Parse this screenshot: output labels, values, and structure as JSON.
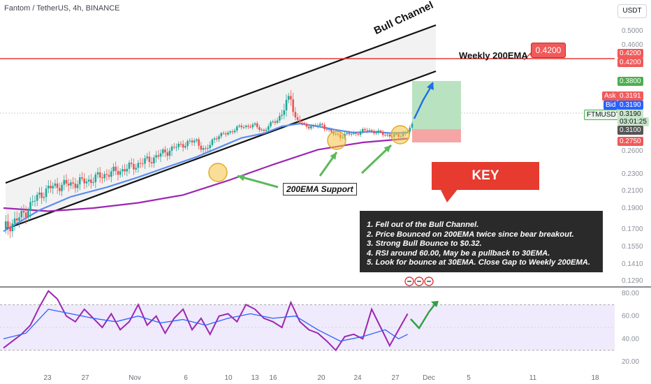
{
  "header": {
    "title": "Fantom / TetherUS, 4h, BINANCE",
    "currency_button": "USDT"
  },
  "annotations": {
    "bull_channel": "Bull Channel",
    "weekly_200ema": "Weekly 200EMA",
    "weekly_200ema_value": "0.4200",
    "ema_support": "200EMA Support",
    "key_takeaways": "KEY TAKEAWAYS",
    "notes": [
      "1. Fell out of the Bull Channel.",
      "2. Price Bounced on 200EMA twice since bear breakout.",
      "3. Strong Bull Bounce to $0.32.",
      "4. RSI around 60.00, May be a pullback to 30EMA.",
      "5. Look for bounce at 30EMA. Close Gap to Weekly 200EMA."
    ]
  },
  "price_labels": {
    "weekly_ema_a": "0.4200",
    "weekly_ema_b": "0.4200",
    "target": "0.3800",
    "ask_tag": "Ask",
    "ask": "0.3191",
    "bid_tag": "Bid",
    "bid": "0.3190",
    "symbol": "FTMUSDT",
    "last": "0.3190",
    "countdown": "03:01:25",
    "entry": "0.3100",
    "stop": "0.2750"
  },
  "colors": {
    "candle_up": "#26a69a",
    "candle_down": "#ef5350",
    "ema30": "#5b8def",
    "ema200": "#9c27b0",
    "channel": "#111111",
    "weekly_ema": "#e53935",
    "rsi": "#9c27b0",
    "rsi_ma": "#2962ff",
    "target_zone": "#b9e3c0",
    "stop_zone": "#f6a5a5",
    "support_circle": "#f5c242",
    "arrow_green": "#5cb85c",
    "arrow_blue": "#1e6fe8"
  },
  "chart_data": [
    {
      "type": "candlestick",
      "title": "Fantom / TetherUS, 4h, BINANCE",
      "x_ticks": [
        "23",
        "27",
        "Nov",
        "6",
        "10",
        "13",
        "16",
        "20",
        "24",
        "27",
        "Dec",
        "5",
        "11",
        "18"
      ],
      "y_ticks": [
        0.129,
        0.141,
        0.155,
        0.17,
        0.19,
        0.21,
        0.23,
        0.26,
        0.28,
        0.31,
        0.34,
        0.38,
        0.42,
        0.46,
        0.5
      ],
      "y_tick_labels": [
        "0.1290",
        "0.1410",
        "0.1550",
        "0.1700",
        "0.1900",
        "0.2100",
        "0.2300",
        "0.2600",
        "0.2800",
        "0.3100",
        "0.3400",
        "0.3800",
        "0.4200",
        "0.4600",
        "0.5000"
      ],
      "price_path": [
        [
          0,
          0.17
        ],
        [
          8,
          0.182
        ],
        [
          16,
          0.205
        ],
        [
          22,
          0.215
        ],
        [
          30,
          0.218
        ],
        [
          38,
          0.222
        ],
        [
          46,
          0.23
        ],
        [
          54,
          0.236
        ],
        [
          62,
          0.245
        ],
        [
          68,
          0.252
        ],
        [
          74,
          0.262
        ],
        [
          80,
          0.272
        ],
        [
          86,
          0.278
        ],
        [
          90,
          0.258
        ],
        [
          94,
          0.285
        ],
        [
          100,
          0.3
        ],
        [
          106,
          0.318
        ],
        [
          112,
          0.32
        ],
        [
          116,
          0.305
        ],
        [
          120,
          0.33
        ],
        [
          124,
          0.345
        ],
        [
          128,
          0.365
        ],
        [
          130,
          0.34
        ],
        [
          134,
          0.32
        ],
        [
          138,
          0.318
        ],
        [
          142,
          0.322
        ],
        [
          146,
          0.3
        ],
        [
          150,
          0.29
        ],
        [
          154,
          0.296
        ],
        [
          158,
          0.3
        ],
        [
          162,
          0.308
        ],
        [
          164,
          0.305
        ],
        [
          168,
          0.298
        ],
        [
          172,
          0.292
        ],
        [
          176,
          0.29
        ],
        [
          180,
          0.306
        ],
        [
          182,
          0.319
        ]
      ],
      "ema30_path": [
        [
          0,
          0.168
        ],
        [
          16,
          0.188
        ],
        [
          30,
          0.203
        ],
        [
          46,
          0.214
        ],
        [
          60,
          0.226
        ],
        [
          74,
          0.24
        ],
        [
          86,
          0.252
        ],
        [
          96,
          0.266
        ],
        [
          106,
          0.285
        ],
        [
          116,
          0.298
        ],
        [
          124,
          0.318
        ],
        [
          132,
          0.326
        ],
        [
          140,
          0.318
        ],
        [
          148,
          0.308
        ],
        [
          156,
          0.3
        ],
        [
          164,
          0.303
        ],
        [
          172,
          0.299
        ],
        [
          180,
          0.3
        ]
      ],
      "ema200_path": [
        [
          0,
          0.19
        ],
        [
          20,
          0.187
        ],
        [
          40,
          0.19
        ],
        [
          60,
          0.196
        ],
        [
          80,
          0.205
        ],
        [
          100,
          0.222
        ],
        [
          120,
          0.242
        ],
        [
          140,
          0.262
        ],
        [
          160,
          0.275
        ],
        [
          180,
          0.283
        ]
      ],
      "weekly_200ema": 0.42,
      "target_zone": [
        0.31,
        0.38
      ],
      "stop_zone": [
        0.275,
        0.31
      ],
      "last_price": 0.319
    },
    {
      "type": "line",
      "title": "RSI",
      "y_ticks": [
        20,
        40,
        60,
        80
      ],
      "y_tick_labels": [
        "20.00",
        "40.00",
        "60.00",
        "80.00"
      ],
      "band": [
        30,
        70
      ],
      "series": [
        {
          "values": [
            [
              0,
              32
            ],
            [
              4,
              38
            ],
            [
              8,
              44
            ],
            [
              12,
              52
            ],
            [
              16,
              68
            ],
            [
              20,
              82
            ],
            [
              24,
              75
            ],
            [
              28,
              60
            ],
            [
              32,
              55
            ],
            [
              36,
              66
            ],
            [
              40,
              58
            ],
            [
              44,
              50
            ],
            [
              48,
              62
            ],
            [
              52,
              48
            ],
            [
              56,
              55
            ],
            [
              60,
              70
            ],
            [
              64,
              52
            ],
            [
              68,
              60
            ],
            [
              72,
              45
            ],
            [
              76,
              58
            ],
            [
              80,
              66
            ],
            [
              84,
              48
            ],
            [
              88,
              58
            ],
            [
              92,
              44
            ],
            [
              96,
              60
            ],
            [
              100,
              62
            ],
            [
              104,
              55
            ],
            [
              108,
              70
            ],
            [
              112,
              66
            ],
            [
              116,
              58
            ],
            [
              120,
              55
            ],
            [
              124,
              50
            ],
            [
              128,
              72
            ],
            [
              132,
              55
            ],
            [
              136,
              48
            ],
            [
              140,
              45
            ],
            [
              144,
              38
            ],
            [
              148,
              30
            ],
            [
              152,
              42
            ],
            [
              156,
              44
            ],
            [
              160,
              40
            ],
            [
              164,
              66
            ],
            [
              168,
              50
            ],
            [
              172,
              34
            ],
            [
              176,
              48
            ],
            [
              180,
              62
            ]
          ]
        },
        {
          "values": [
            [
              0,
              40
            ],
            [
              10,
              45
            ],
            [
              20,
              66
            ],
            [
              30,
              62
            ],
            [
              40,
              58
            ],
            [
              50,
              55
            ],
            [
              60,
              60
            ],
            [
              70,
              54
            ],
            [
              80,
              57
            ],
            [
              90,
              52
            ],
            [
              100,
              58
            ],
            [
              110,
              62
            ],
            [
              120,
              58
            ],
            [
              130,
              60
            ],
            [
              140,
              48
            ],
            [
              150,
              38
            ],
            [
              160,
              42
            ],
            [
              170,
              48
            ],
            [
              176,
              40
            ],
            [
              180,
              44
            ]
          ]
        }
      ]
    }
  ]
}
